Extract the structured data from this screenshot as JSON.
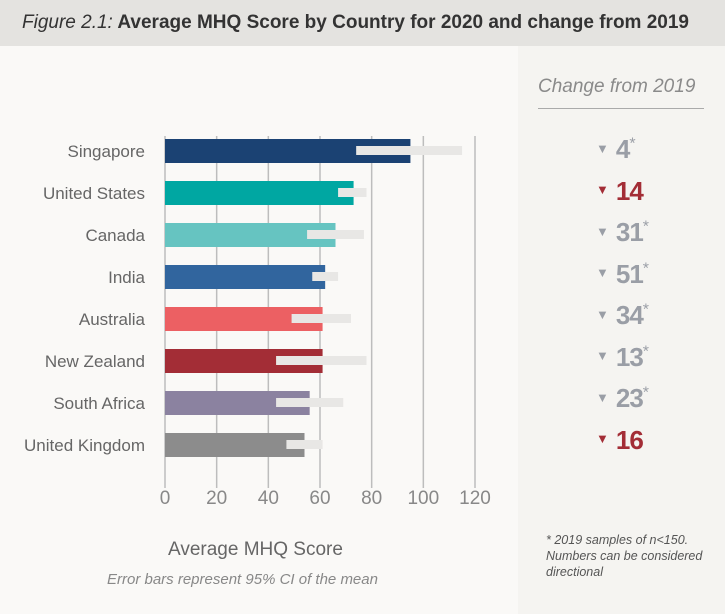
{
  "header": {
    "figure_label": "Figure 2.1:",
    "title": "Average MHQ Score by Country for 2020 and change from 2019"
  },
  "chart_data": {
    "type": "bar",
    "orientation": "horizontal",
    "title": "Average MHQ Score by Country for 2020 and change from 2019",
    "xlabel": "Average MHQ Score",
    "note": "Error bars represent 95% CI of the mean",
    "xlim": [
      0,
      120
    ],
    "xticks": [
      "0",
      "20",
      "40",
      "60",
      "80",
      "100",
      "120"
    ],
    "grid": true,
    "categories": [
      "Singapore",
      "United States",
      "Canada",
      "India",
      "Australia",
      "New Zealand",
      "South Africa",
      "United Kingdom"
    ],
    "values": [
      95,
      73,
      66,
      62,
      61,
      61,
      56,
      54
    ],
    "ci_low": [
      74,
      67,
      55,
      57,
      49,
      43,
      43,
      47
    ],
    "ci_high": [
      115,
      78,
      77,
      67,
      72,
      78,
      69,
      61
    ],
    "colors": [
      "#1b4273",
      "#00a7a2",
      "#66c4c1",
      "#31659e",
      "#ec6063",
      "#a32d36",
      "#8b82a0",
      "#8c8c8c"
    ],
    "error_bar_color": "#e8e7e5"
  },
  "change": {
    "heading": "Change from 2019",
    "items": [
      {
        "value": "4",
        "direction": "down",
        "asterisk": "*",
        "color": "#9a9ea6"
      },
      {
        "value": "14",
        "direction": "down",
        "asterisk": "",
        "color": "#a32d36"
      },
      {
        "value": "31",
        "direction": "down",
        "asterisk": "*",
        "color": "#9a9ea6"
      },
      {
        "value": "51",
        "direction": "down",
        "asterisk": "*",
        "color": "#9a9ea6"
      },
      {
        "value": "34",
        "direction": "down",
        "asterisk": "*",
        "color": "#9a9ea6"
      },
      {
        "value": "13",
        "direction": "down",
        "asterisk": "*",
        "color": "#9a9ea6"
      },
      {
        "value": "23",
        "direction": "down",
        "asterisk": "*",
        "color": "#9a9ea6"
      },
      {
        "value": "16",
        "direction": "down",
        "asterisk": "",
        "color": "#a32d36"
      }
    ],
    "footnote": "* 2019 samples of n<150. Numbers can be considered directional"
  }
}
